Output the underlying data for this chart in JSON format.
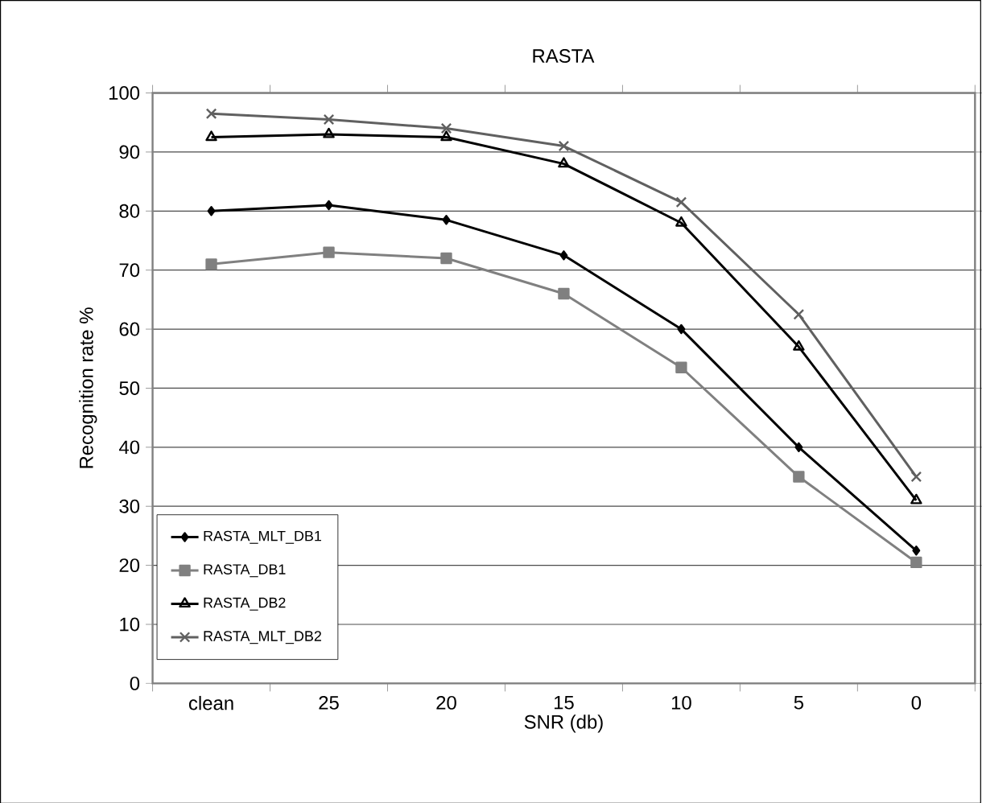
{
  "chart_data": {
    "type": "line",
    "title": "RASTA",
    "xlabel": "SNR (db)",
    "ylabel": "Recognition rate %",
    "categories": [
      "clean",
      "25",
      "20",
      "15",
      "10",
      "5",
      "0"
    ],
    "series": [
      {
        "name": "RASTA_MLT_DB1",
        "color": "#000000",
        "marker": "diamond",
        "values": [
          80,
          81,
          78.5,
          72.5,
          60,
          40,
          22.5
        ]
      },
      {
        "name": "RASTA_DB1",
        "color": "#808080",
        "marker": "square",
        "values": [
          71,
          73,
          72,
          66,
          53.5,
          35,
          20.5
        ]
      },
      {
        "name": "RASTA_DB2",
        "color": "#000000",
        "marker": "triangle",
        "values": [
          92.5,
          93,
          92.5,
          88,
          78,
          57,
          31
        ]
      },
      {
        "name": "RASTA_MLT_DB2",
        "color": "#606060",
        "marker": "cross",
        "values": [
          96.5,
          95.5,
          94,
          91,
          81.5,
          62.5,
          35
        ]
      }
    ],
    "ylim": [
      0,
      100
    ],
    "yticks": [
      0,
      10,
      20,
      30,
      40,
      50,
      60,
      70,
      80,
      90,
      100
    ],
    "grid": "y",
    "legend": "bottom left",
    "line_style": "solid"
  }
}
